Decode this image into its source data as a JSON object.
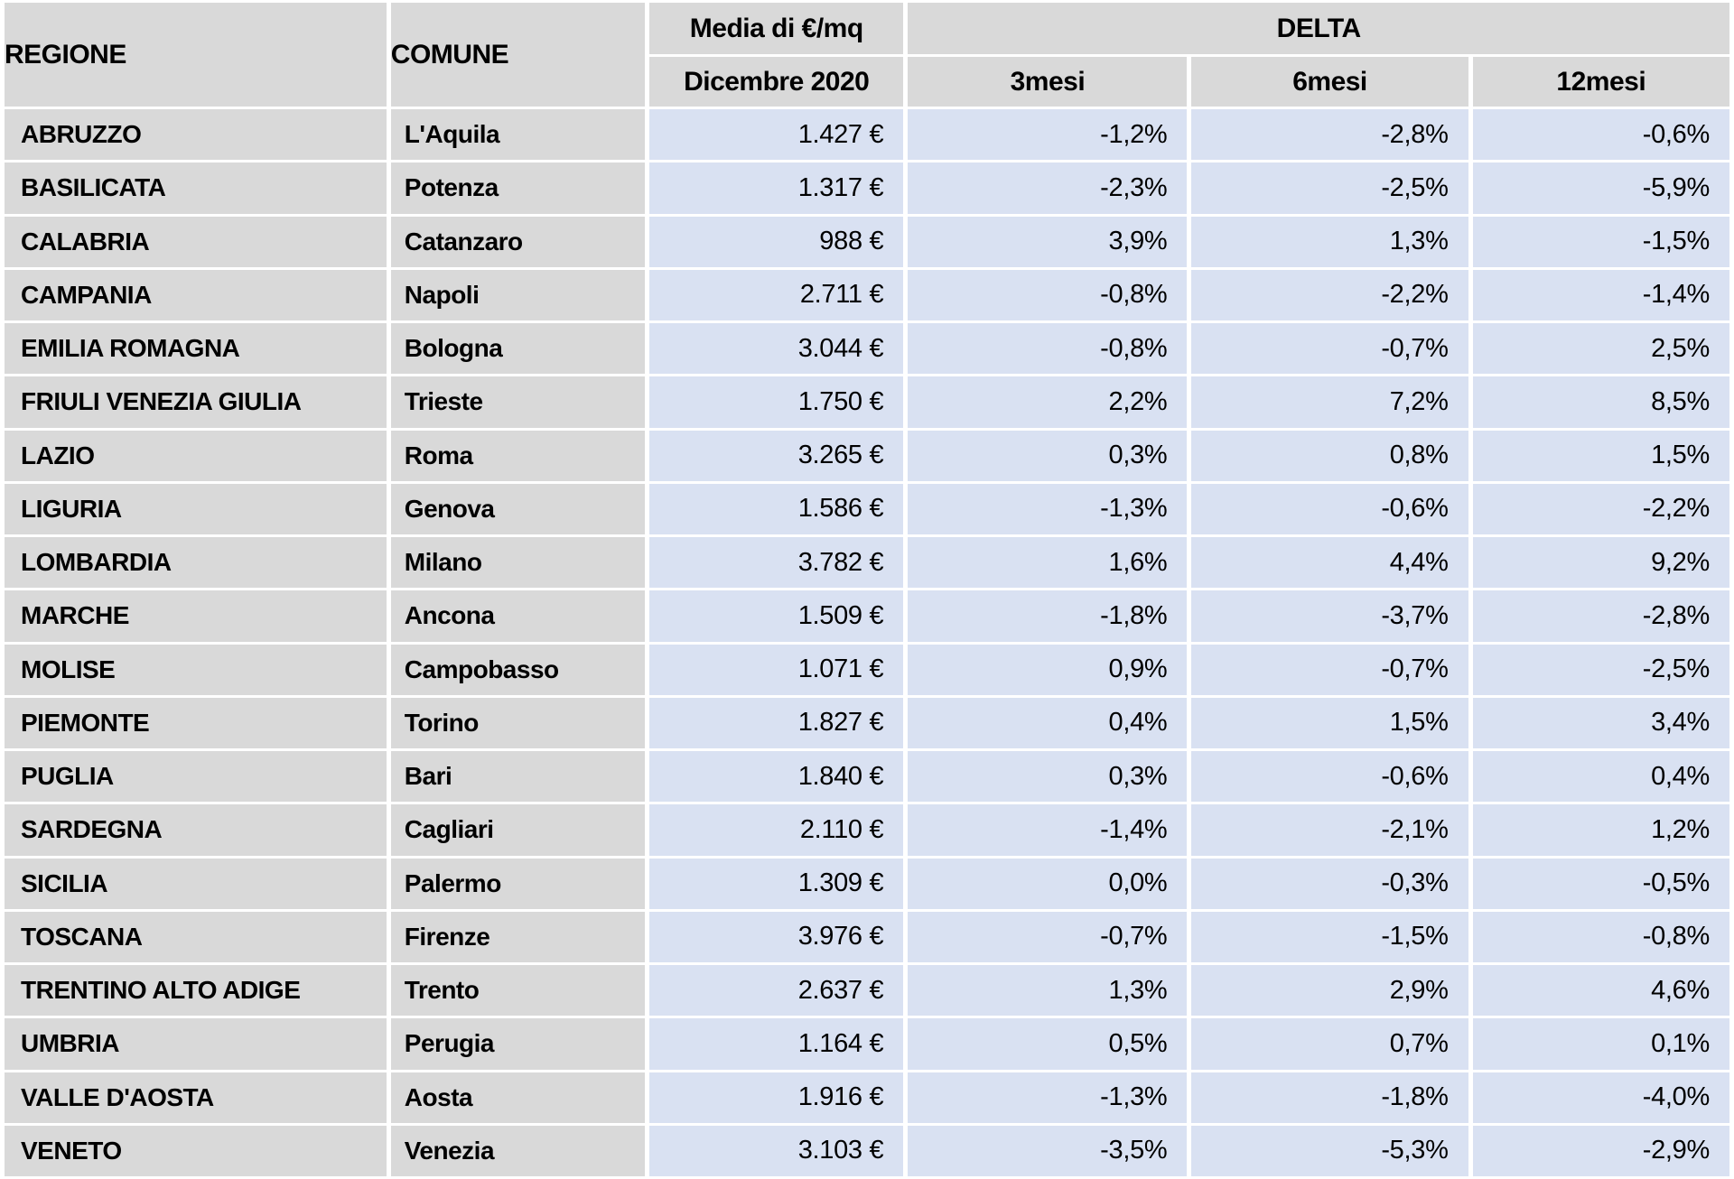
{
  "colors": {
    "header_bg": "#d9d9d9",
    "label_column_bg": "#d9d9d9",
    "value_column_bg": "#d9e1f2",
    "cell_border": "#ffffff",
    "text": "#000000"
  },
  "table": {
    "headers": {
      "regione": "REGIONE",
      "comune": "COMUNE",
      "media_group": "Media di €/mq",
      "media_sub": "Dicembre 2020",
      "delta_group": "DELTA",
      "delta_subs": [
        "3mesi",
        "6mesi",
        "12mesi"
      ]
    },
    "rows": [
      {
        "regione": "ABRUZZO",
        "comune": "L'Aquila",
        "media": "1.427 €",
        "d3": "-1,2%",
        "d6": "-2,8%",
        "d12": "-0,6%"
      },
      {
        "regione": "BASILICATA",
        "comune": "Potenza",
        "media": "1.317 €",
        "d3": "-2,3%",
        "d6": "-2,5%",
        "d12": "-5,9%"
      },
      {
        "regione": "CALABRIA",
        "comune": "Catanzaro",
        "media": "988 €",
        "d3": "3,9%",
        "d6": "1,3%",
        "d12": "-1,5%"
      },
      {
        "regione": "CAMPANIA",
        "comune": "Napoli",
        "media": "2.711 €",
        "d3": "-0,8%",
        "d6": "-2,2%",
        "d12": "-1,4%"
      },
      {
        "regione": "EMILIA ROMAGNA",
        "comune": "Bologna",
        "media": "3.044 €",
        "d3": "-0,8%",
        "d6": "-0,7%",
        "d12": "2,5%"
      },
      {
        "regione": "FRIULI VENEZIA GIULIA",
        "comune": "Trieste",
        "media": "1.750 €",
        "d3": "2,2%",
        "d6": "7,2%",
        "d12": "8,5%"
      },
      {
        "regione": "LAZIO",
        "comune": "Roma",
        "media": "3.265 €",
        "d3": "0,3%",
        "d6": "0,8%",
        "d12": "1,5%"
      },
      {
        "regione": "LIGURIA",
        "comune": "Genova",
        "media": "1.586 €",
        "d3": "-1,3%",
        "d6": "-0,6%",
        "d12": "-2,2%"
      },
      {
        "regione": "LOMBARDIA",
        "comune": "Milano",
        "media": "3.782 €",
        "d3": "1,6%",
        "d6": "4,4%",
        "d12": "9,2%"
      },
      {
        "regione": "MARCHE",
        "comune": "Ancona",
        "media": "1.509 €",
        "d3": "-1,8%",
        "d6": "-3,7%",
        "d12": "-2,8%"
      },
      {
        "regione": "MOLISE",
        "comune": "Campobasso",
        "media": "1.071 €",
        "d3": "0,9%",
        "d6": "-0,7%",
        "d12": "-2,5%"
      },
      {
        "regione": "PIEMONTE",
        "comune": "Torino",
        "media": "1.827 €",
        "d3": "0,4%",
        "d6": "1,5%",
        "d12": "3,4%"
      },
      {
        "regione": "PUGLIA",
        "comune": "Bari",
        "media": "1.840 €",
        "d3": "0,3%",
        "d6": "-0,6%",
        "d12": "0,4%"
      },
      {
        "regione": "SARDEGNA",
        "comune": "Cagliari",
        "media": "2.110 €",
        "d3": "-1,4%",
        "d6": "-2,1%",
        "d12": "1,2%"
      },
      {
        "regione": "SICILIA",
        "comune": "Palermo",
        "media": "1.309 €",
        "d3": "0,0%",
        "d6": "-0,3%",
        "d12": "-0,5%"
      },
      {
        "regione": "TOSCANA",
        "comune": "Firenze",
        "media": "3.976 €",
        "d3": "-0,7%",
        "d6": "-1,5%",
        "d12": "-0,8%"
      },
      {
        "regione": "TRENTINO ALTO ADIGE",
        "comune": "Trento",
        "media": "2.637 €",
        "d3": "1,3%",
        "d6": "2,9%",
        "d12": "4,6%"
      },
      {
        "regione": "UMBRIA",
        "comune": "Perugia",
        "media": "1.164 €",
        "d3": "0,5%",
        "d6": "0,7%",
        "d12": "0,1%"
      },
      {
        "regione": "VALLE D'AOSTA",
        "comune": "Aosta",
        "media": "1.916 €",
        "d3": "-1,3%",
        "d6": "-1,8%",
        "d12": "-4,0%"
      },
      {
        "regione": "VENETO",
        "comune": "Venezia",
        "media": "3.103 €",
        "d3": "-3,5%",
        "d6": "-5,3%",
        "d12": "-2,9%"
      }
    ]
  },
  "chart_data": {
    "type": "table",
    "columns": [
      "REGIONE",
      "COMUNE",
      "Media di €/mq Dicembre 2020",
      "DELTA 3mesi",
      "DELTA 6mesi",
      "DELTA 12mesi"
    ],
    "units": {
      "media": "€/mq",
      "delta": "%"
    },
    "rows": [
      [
        "ABRUZZO",
        "L'Aquila",
        1427,
        -1.2,
        -2.8,
        -0.6
      ],
      [
        "BASILICATA",
        "Potenza",
        1317,
        -2.3,
        -2.5,
        -5.9
      ],
      [
        "CALABRIA",
        "Catanzaro",
        988,
        3.9,
        1.3,
        -1.5
      ],
      [
        "CAMPANIA",
        "Napoli",
        2711,
        -0.8,
        -2.2,
        -1.4
      ],
      [
        "EMILIA ROMAGNA",
        "Bologna",
        3044,
        -0.8,
        -0.7,
        2.5
      ],
      [
        "FRIULI VENEZIA GIULIA",
        "Trieste",
        1750,
        2.2,
        7.2,
        8.5
      ],
      [
        "LAZIO",
        "Roma",
        3265,
        0.3,
        0.8,
        1.5
      ],
      [
        "LIGURIA",
        "Genova",
        1586,
        -1.3,
        -0.6,
        -2.2
      ],
      [
        "LOMBARDIA",
        "Milano",
        3782,
        1.6,
        4.4,
        9.2
      ],
      [
        "MARCHE",
        "Ancona",
        1509,
        -1.8,
        -3.7,
        -2.8
      ],
      [
        "MOLISE",
        "Campobasso",
        1071,
        0.9,
        -0.7,
        -2.5
      ],
      [
        "PIEMONTE",
        "Torino",
        1827,
        0.4,
        1.5,
        3.4
      ],
      [
        "PUGLIA",
        "Bari",
        1840,
        0.3,
        -0.6,
        0.4
      ],
      [
        "SARDEGNA",
        "Cagliari",
        2110,
        -1.4,
        -2.1,
        1.2
      ],
      [
        "SICILIA",
        "Palermo",
        1309,
        0.0,
        -0.3,
        -0.5
      ],
      [
        "TOSCANA",
        "Firenze",
        3976,
        -0.7,
        -1.5,
        -0.8
      ],
      [
        "TRENTINO ALTO ADIGE",
        "Trento",
        2637,
        1.3,
        2.9,
        4.6
      ],
      [
        "UMBRIA",
        "Perugia",
        1164,
        0.5,
        0.7,
        0.1
      ],
      [
        "VALLE D'AOSTA",
        "Aosta",
        1916,
        -1.3,
        -1.8,
        -4.0
      ],
      [
        "VENETO",
        "Venezia",
        3103,
        -3.5,
        -5.3,
        -2.9
      ]
    ]
  }
}
